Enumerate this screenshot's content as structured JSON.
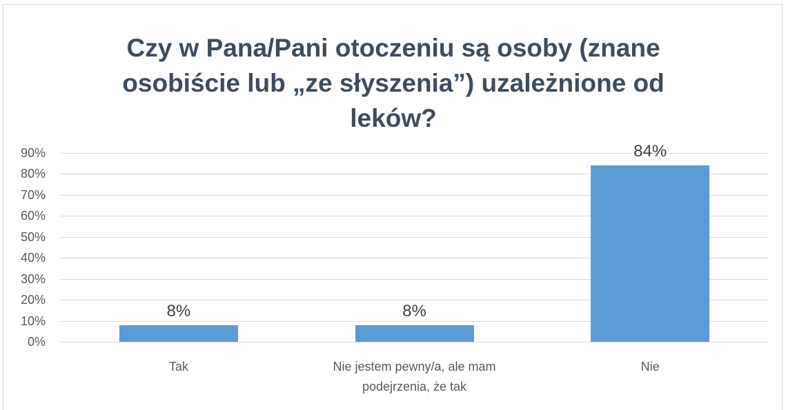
{
  "chart_data": {
    "type": "bar",
    "title": "Czy w Pana/Pani otoczeniu są osoby (znane osobiście lub „ze słyszenia”) uzależnione od leków?",
    "categories": [
      "Tak",
      "Nie jestem pewny/a, ale mam podejrzenia, że tak",
      "Nie"
    ],
    "values": [
      8,
      8,
      84
    ],
    "value_labels": [
      "8%",
      "8%",
      "84%"
    ],
    "color": "#5b9bd5",
    "ylim": [
      0,
      90
    ],
    "yticks": [
      {
        "value": 0,
        "label": "0%"
      },
      {
        "value": 10,
        "label": "10%"
      },
      {
        "value": 20,
        "label": "20%"
      },
      {
        "value": 30,
        "label": "30%"
      },
      {
        "value": 40,
        "label": "40%"
      },
      {
        "value": 50,
        "label": "50%"
      },
      {
        "value": 60,
        "label": "60%"
      },
      {
        "value": 70,
        "label": "70%"
      },
      {
        "value": 80,
        "label": "80%"
      },
      {
        "value": 90,
        "label": "90%"
      }
    ],
    "grid": true
  }
}
